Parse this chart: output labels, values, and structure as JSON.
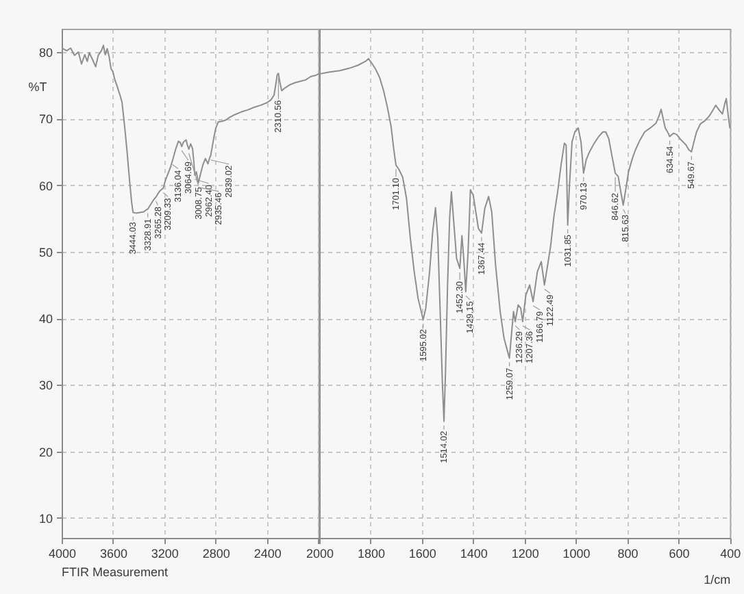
{
  "chart_data": [
    {
      "type": "line",
      "ylabel": "%T",
      "color": "#8e8e8e",
      "grid": true,
      "xlim": [
        4000,
        2000
      ],
      "xticks": [
        4000,
        3600,
        3200,
        2800,
        2400,
        {
          "value": 2000,
          "label": null
        }
      ],
      "ylim": [
        7,
        83.5
      ],
      "yticks": [
        10,
        20,
        30,
        40,
        50,
        60,
        70,
        80
      ],
      "x": [
        3990,
        3960,
        3930,
        3900,
        3870,
        3845,
        3820,
        3800,
        3785,
        3760,
        3735,
        3715,
        3690,
        3675,
        3660,
        3645,
        3630,
        3615,
        3600,
        3585,
        3570,
        3550,
        3530,
        3510,
        3490,
        3470,
        3455,
        3444.03,
        3420,
        3390,
        3360,
        3340,
        3328.91,
        3300,
        3280,
        3265.28,
        3240,
        3220,
        3209.33,
        3190,
        3170,
        3150,
        3136.04,
        3110,
        3090,
        3075,
        3064.69,
        3050,
        3030,
        3020,
        3008.75,
        2995,
        2980,
        2970,
        2962.4,
        2950,
        2935.46,
        2920,
        2900,
        2880,
        2860,
        2845,
        2839.02,
        2820,
        2800,
        2780,
        2750,
        2720,
        2690,
        2650,
        2600,
        2550,
        2500,
        2450,
        2400,
        2370,
        2345,
        2330,
        2320,
        2310.56,
        2300,
        2285,
        2260,
        2220,
        2180,
        2140,
        2100,
        2060,
        2020,
        2000
      ],
      "values": [
        80.5,
        80.2,
        80.6,
        79.5,
        80.0,
        78.2,
        79.6,
        78.6,
        79.9,
        78.9,
        77.8,
        79.5,
        80.2,
        81.0,
        79.6,
        80.5,
        79.3,
        77.5,
        77.0,
        75.8,
        75.0,
        73.8,
        72.5,
        69.0,
        65.0,
        60.5,
        57.5,
        55.9,
        55.8,
        55.9,
        56.0,
        56.3,
        56.4,
        57.3,
        57.9,
        58.2,
        59.0,
        59.4,
        59.5,
        60.8,
        61.8,
        62.8,
        63.7,
        65.5,
        66.6,
        66.4,
        65.8,
        66.5,
        66.8,
        66.0,
        65.4,
        66.2,
        65.5,
        63.5,
        61.5,
        62.0,
        60.3,
        61.5,
        63.0,
        64.0,
        63.2,
        64.2,
        64.4,
        66.5,
        68.5,
        69.5,
        69.6,
        69.8,
        70.2,
        70.6,
        71.0,
        71.3,
        71.7,
        72.0,
        72.4,
        72.8,
        73.5,
        75.3,
        76.6,
        76.8,
        75.5,
        74.2,
        74.6,
        75.1,
        75.4,
        75.6,
        75.8,
        76.3,
        76.5,
        76.7
      ],
      "annotations": [
        "FTIR Measurement",
        {
          "text": "3444.03",
          "x": 3444.03,
          "y": 55.9
        },
        {
          "text": "3328.91",
          "x": 3328.91,
          "y": 56.4
        },
        {
          "text": "3265.28",
          "x": 3265.28,
          "y": 58.2
        },
        {
          "text": "3209.33",
          "x": 3209.33,
          "y": 59.5
        },
        {
          "text": "3136.04",
          "x": 3136.04,
          "y": 63.7
        },
        {
          "text": "3064.69",
          "x": 3064.69,
          "y": 65.8
        },
        {
          "text": "3008.75",
          "x": 3008.75,
          "y": 65.4
        },
        {
          "text": "2962.40",
          "x": 2962.4,
          "y": 61.5
        },
        {
          "text": "2935.46",
          "x": 2935.46,
          "y": 60.3
        },
        {
          "text": "2839.02",
          "x": 2839.02,
          "y": 64.4
        },
        {
          "text": "2310.56",
          "x": 2310.56,
          "y": 76.8
        }
      ]
    },
    {
      "type": "line",
      "xlabel": "1/cm",
      "color": "#8e8e8e",
      "grid": true,
      "tick_labels": "x",
      "xlim": [
        2000,
        400
      ],
      "xticks": [
        2000,
        1800,
        1600,
        1400,
        1200,
        1000,
        800,
        600,
        400
      ],
      "ylim": [
        7,
        83.5
      ],
      "yticks": [
        10,
        20,
        30,
        40,
        50,
        60,
        70,
        80
      ],
      "x": [
        2000,
        1960,
        1920,
        1880,
        1850,
        1820,
        1808,
        1795,
        1780,
        1765,
        1750,
        1735,
        1720,
        1710,
        1701.1,
        1690,
        1675,
        1660,
        1645,
        1630,
        1615,
        1595.02,
        1585,
        1570,
        1558,
        1547,
        1538,
        1528,
        1520,
        1514.02,
        1508,
        1500,
        1492,
        1485,
        1477,
        1465,
        1452.3,
        1444,
        1437,
        1429.15,
        1420,
        1411,
        1400,
        1390,
        1380,
        1367.44,
        1355,
        1340,
        1328,
        1313,
        1295,
        1280,
        1259.07,
        1250,
        1243,
        1236.29,
        1225,
        1215,
        1207.36,
        1195,
        1180,
        1166.79,
        1150,
        1135,
        1122.49,
        1110,
        1098,
        1085,
        1071,
        1058,
        1045,
        1038,
        1031.85,
        1025,
        1015,
        1004,
        991,
        980,
        970.13,
        960,
        947,
        930,
        911,
        895,
        884,
        872,
        860,
        846.62,
        835,
        825,
        815.63,
        805,
        795,
        780,
        768,
        750,
        732,
        710,
        688,
        675,
        668,
        660,
        652,
        640,
        634.54,
        620,
        607,
        595,
        585,
        570,
        560,
        549.67,
        540,
        530,
        515,
        500,
        482,
        470,
        455,
        440,
        429,
        420,
        414,
        405,
        400
      ],
      "values": [
        76.7,
        77.0,
        77.2,
        77.6,
        78.0,
        78.6,
        79.0,
        78.3,
        77.4,
        76.2,
        74.3,
        71.8,
        68.8,
        65.5,
        63.0,
        62.4,
        61.2,
        58.0,
        52.0,
        47.0,
        43.0,
        39.8,
        41.5,
        47.0,
        53.0,
        56.6,
        52.0,
        40.0,
        30.0,
        24.5,
        32.0,
        45.0,
        55.0,
        59.0,
        55.0,
        49.0,
        47.5,
        52.4,
        49.0,
        44.0,
        50.0,
        59.3,
        58.5,
        56.0,
        53.5,
        52.8,
        56.5,
        58.3,
        56.0,
        48.0,
        41.0,
        37.0,
        34.0,
        38.0,
        41.0,
        39.5,
        42.0,
        41.5,
        39.5,
        43.5,
        45.0,
        42.5,
        47.0,
        48.5,
        45.0,
        48.0,
        51.0,
        55.5,
        59.0,
        63.0,
        66.3,
        66.0,
        54.0,
        60.0,
        66.5,
        68.0,
        68.6,
        66.5,
        61.8,
        63.8,
        65.0,
        66.2,
        67.3,
        68.0,
        68.0,
        67.0,
        64.5,
        61.8,
        61.3,
        59.0,
        57.0,
        59.5,
        62.0,
        64.0,
        65.3,
        66.8,
        68.0,
        68.6,
        69.3,
        70.5,
        71.4,
        70.0,
        68.6,
        67.8,
        67.3,
        67.8,
        67.6,
        67.0,
        66.6,
        66.0,
        65.3,
        65.0,
        66.5,
        68.0,
        69.2,
        69.6,
        70.3,
        71.0,
        72.0,
        71.2,
        70.7,
        72.2,
        73.0,
        70.0,
        68.6
      ],
      "annotations": [
        {
          "text": "1701.10",
          "x": 1701.1,
          "y": 63.0
        },
        {
          "text": "1595.02",
          "x": 1595.02,
          "y": 39.8
        },
        {
          "text": "1514.02",
          "x": 1514.02,
          "y": 24.5
        },
        {
          "text": "1452.30",
          "x": 1452.3,
          "y": 47.5
        },
        {
          "text": "1429.15",
          "x": 1429.15,
          "y": 44.0
        },
        {
          "text": "1367.44",
          "x": 1367.44,
          "y": 52.8
        },
        {
          "text": "1259.07",
          "x": 1259.07,
          "y": 34.0
        },
        {
          "text": "1236.29",
          "x": 1236.29,
          "y": 39.5
        },
        {
          "text": "1207.36",
          "x": 1207.36,
          "y": 39.5
        },
        {
          "text": "1166.79",
          "x": 1166.79,
          "y": 42.5
        },
        {
          "text": "1122.49",
          "x": 1122.49,
          "y": 45.0
        },
        {
          "text": "1031.85",
          "x": 1031.85,
          "y": 54.0
        },
        {
          "text": "970.13",
          "x": 970.13,
          "y": 61.8
        },
        {
          "text": "846.62",
          "x": 846.62,
          "y": 61.8
        },
        {
          "text": "815.63",
          "x": 815.63,
          "y": 57.0
        },
        {
          "text": "634.54",
          "x": 634.54,
          "y": 67.3
        },
        {
          "text": "549.67",
          "x": 549.67,
          "y": 65.0
        }
      ]
    }
  ]
}
